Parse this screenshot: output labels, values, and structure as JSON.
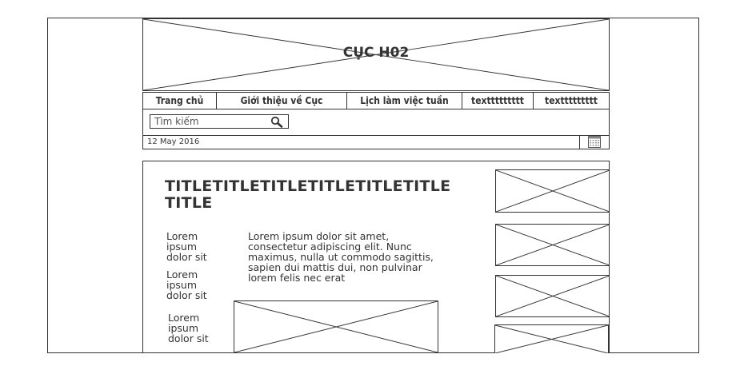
{
  "header": {
    "title": "CỤC H02"
  },
  "nav": {
    "items": [
      {
        "label": "Trang chủ"
      },
      {
        "label": "Giới thiệu về Cục"
      },
      {
        "label": "Lịch làm việc tuần"
      },
      {
        "label": "texttttttttt"
      },
      {
        "label": "texttttttttt"
      }
    ]
  },
  "search": {
    "placeholder": "Tìm kiếm"
  },
  "date": {
    "text": "12 May 2016"
  },
  "article": {
    "title": "TITLETITLETITLETITLETITLETITLETITLE",
    "side_texts": [
      "Lorem ipsum dolor sit",
      "Lorem ipsum dolor sit",
      "Lorem ipsum dolor sit"
    ],
    "paragraph": "Lorem ipsum dolor sit amet, consectetur adipiscing elit. Nunc maximus, nulla ut commodo sagittis, sapien dui mattis dui, non pulvinar lorem felis nec erat"
  },
  "icons": {
    "search": "search-icon",
    "calendar": "calendar-icon",
    "image": "image-placeholder"
  }
}
